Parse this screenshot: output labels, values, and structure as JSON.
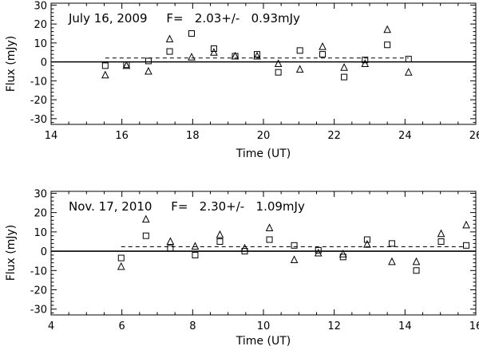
{
  "chart_data": [
    {
      "type": "scatter",
      "annotation": "July 16, 2009     F=   2.03+/-   0.93mJy",
      "xlabel": "Time (UT)",
      "ylabel": "Flux (mJy)",
      "xlim": [
        14,
        26
      ],
      "ylim": [
        -33,
        31
      ],
      "x_ticks": [
        14,
        16,
        18,
        20,
        22,
        24,
        26
      ],
      "y_ticks": [
        -30,
        -20,
        -10,
        0,
        10,
        20,
        30
      ],
      "mean_flux": 2.03,
      "series": [
        {
          "marker": "square",
          "x": [
            15.53,
            16.13,
            16.75,
            17.35,
            17.97,
            18.6,
            19.2,
            19.82,
            20.42,
            21.03,
            21.67,
            22.28,
            22.87,
            23.5,
            24.1
          ],
          "y": [
            -2,
            -1.5,
            0.5,
            5.5,
            15,
            7,
            3,
            4,
            -5.5,
            6,
            4,
            -8,
            1,
            9,
            1.5
          ]
        },
        {
          "marker": "triangle",
          "x": [
            15.53,
            16.13,
            16.75,
            17.35,
            17.97,
            18.6,
            19.2,
            19.82,
            20.42,
            21.03,
            21.67,
            22.28,
            22.87,
            23.5,
            24.1
          ],
          "y": [
            -7,
            -2,
            -5,
            12,
            2.5,
            5,
            3,
            3,
            -1,
            -4,
            8,
            -3,
            -1,
            17,
            -5.5
          ]
        }
      ]
    },
    {
      "type": "scatter",
      "annotation": "Nov. 17, 2010     F=   2.30+/-   1.09mJy",
      "xlabel": "Time (UT)",
      "ylabel": "Flux (mJy)",
      "xlim": [
        4,
        16
      ],
      "ylim": [
        -33,
        31
      ],
      "x_ticks": [
        4,
        6,
        8,
        10,
        12,
        14,
        16
      ],
      "y_ticks": [
        -30,
        -20,
        -10,
        0,
        10,
        20,
        30
      ],
      "mean_flux": 2.3,
      "series": [
        {
          "marker": "square",
          "x": [
            5.98,
            6.68,
            7.37,
            8.07,
            8.77,
            9.47,
            10.17,
            10.87,
            11.55,
            12.25,
            12.93,
            13.63,
            14.32,
            15.02,
            15.73
          ],
          "y": [
            -3.5,
            8,
            1.5,
            -2,
            5,
            0,
            6,
            3,
            0.5,
            -3,
            6,
            4,
            -10,
            5,
            3
          ]
        },
        {
          "marker": "triangle",
          "x": [
            5.98,
            6.68,
            7.37,
            8.07,
            8.77,
            9.47,
            10.17,
            10.87,
            11.55,
            12.25,
            12.93,
            13.63,
            14.32,
            15.02,
            15.73
          ],
          "y": [
            -8,
            16.5,
            5,
            2.5,
            8.5,
            1.5,
            12,
            -4.5,
            -1,
            -1.5,
            3.5,
            -5.5,
            -5.5,
            9,
            13.5
          ]
        }
      ]
    }
  ]
}
